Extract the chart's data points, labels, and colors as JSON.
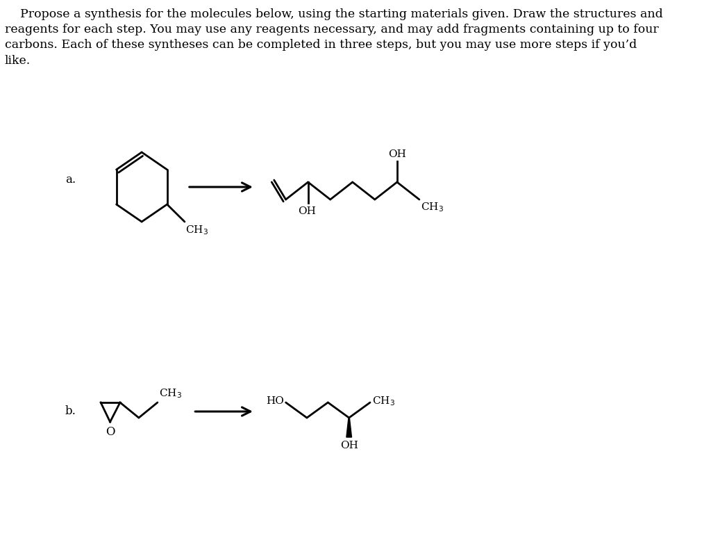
{
  "background_color": "#ffffff",
  "text_color": "#000000",
  "title_line1": "    Propose a synthesis for the molecules below, using the starting materials given. Draw the structures and",
  "title_line2": "reagents for each step. You may use any reagents necessary, and may add fragments containing up to four",
  "title_line3": "carbons. Each of these syntheses can be completed in three steps, but you may use more steps if you’d",
  "title_line4": "like.",
  "label_a": "a.",
  "label_b": "b.",
  "font_size_body": 12.5,
  "font_size_label": 12,
  "font_size_chem": 11,
  "line_width": 2.0,
  "arrow_color": "#000000"
}
